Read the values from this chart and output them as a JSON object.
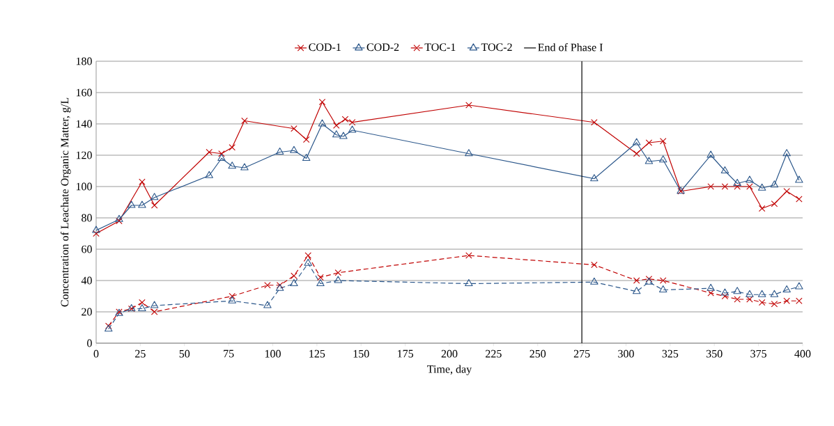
{
  "chart_data": {
    "type": "line",
    "xlabel": "Time, day",
    "ylabel": "Concentration  of Leachate  Organic Matter,  g/L",
    "xlim": [
      0,
      400
    ],
    "ylim": [
      0,
      180
    ],
    "xticks": [
      0,
      25,
      50,
      75,
      100,
      125,
      150,
      175,
      200,
      225,
      250,
      275,
      300,
      325,
      350,
      375,
      400
    ],
    "yticks": [
      0,
      20,
      40,
      60,
      80,
      100,
      120,
      140,
      160,
      180
    ],
    "grid": "y",
    "legend": "top",
    "series": [
      {
        "name": "COD-1",
        "color": "#c00000",
        "marker": "cross",
        "line_style": "solid",
        "x": [
          0,
          13,
          26,
          33,
          64,
          71,
          77,
          84,
          112,
          119,
          128,
          136,
          141,
          145,
          211,
          282,
          306,
          313,
          321,
          331,
          348,
          356,
          363,
          370,
          377,
          384,
          391,
          398
        ],
        "values": [
          70,
          78,
          103,
          88,
          122,
          121,
          125,
          142,
          137,
          130,
          154,
          139,
          143,
          141,
          152,
          141,
          121,
          128,
          129,
          97,
          100,
          100,
          100,
          100,
          86,
          89,
          97,
          92
        ]
      },
      {
        "name": "COD-2",
        "color": "#2a568a",
        "marker": "triangle",
        "line_style": "solid",
        "x": [
          0,
          13,
          20,
          26,
          33,
          64,
          71,
          77,
          84,
          104,
          112,
          119,
          128,
          136,
          140,
          145,
          211,
          282,
          306,
          313,
          321,
          331,
          348,
          356,
          363,
          370,
          377,
          384,
          391,
          398
        ],
        "values": [
          72,
          79,
          88,
          88,
          93,
          107,
          118,
          113,
          112,
          122,
          123,
          118,
          140,
          133,
          132,
          136,
          121,
          105,
          128,
          116,
          117,
          97,
          120,
          110,
          102,
          104,
          99,
          101,
          121,
          104
        ]
      },
      {
        "name": "TOC-1",
        "color": "#c00000",
        "marker": "cross",
        "line_style": "dashed",
        "x": [
          7,
          13,
          20,
          26,
          33,
          77,
          97,
          104,
          112,
          120,
          127,
          137,
          211,
          282,
          306,
          313,
          321,
          348,
          356,
          363,
          370,
          377,
          384,
          391,
          398
        ],
        "values": [
          11,
          20,
          22,
          26,
          20,
          30,
          37,
          37,
          43,
          56,
          42,
          45,
          56,
          50,
          40,
          41,
          40,
          32,
          30,
          28,
          28,
          26,
          25,
          27,
          27
        ]
      },
      {
        "name": "TOC-2",
        "color": "#2a568a",
        "marker": "triangle",
        "line_style": "dashed",
        "x": [
          7,
          13,
          20,
          26,
          33,
          77,
          97,
          104,
          112,
          120,
          127,
          137,
          211,
          282,
          306,
          313,
          321,
          348,
          356,
          363,
          370,
          377,
          384,
          391,
          398
        ],
        "values": [
          9,
          19,
          22,
          22,
          24,
          27,
          24,
          35,
          38,
          51,
          38,
          40,
          38,
          39,
          33,
          39,
          34,
          35,
          32,
          33,
          31,
          31,
          31,
          34,
          36
        ]
      }
    ],
    "ref_lines": [
      {
        "axis": "x",
        "value": 275,
        "label": "End of Phase I",
        "color": "#000000"
      }
    ]
  }
}
